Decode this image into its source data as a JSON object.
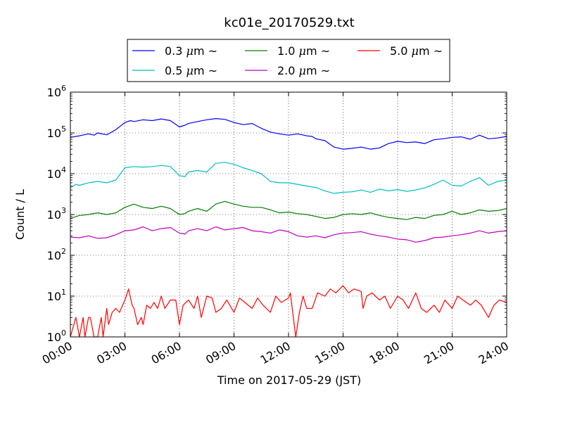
{
  "chart_data": {
    "type": "line",
    "title": "kc01e_20170529.txt",
    "xlabel": "Time on 2017-05-29 (JST)",
    "ylabel": "Count / L",
    "xlim": [
      "00:00",
      "24:00"
    ],
    "ylim": [
      1,
      1000000
    ],
    "yscale": "log",
    "grid": true,
    "legend_position": "top-center",
    "x_ticks": [
      "00:00",
      "03:00",
      "06:00",
      "09:00",
      "12:00",
      "15:00",
      "18:00",
      "21:00",
      "24:00"
    ],
    "y_ticks": [
      {
        "base": "10",
        "exp": "0"
      },
      {
        "base": "10",
        "exp": "1"
      },
      {
        "base": "10",
        "exp": "2"
      },
      {
        "base": "10",
        "exp": "3"
      },
      {
        "base": "10",
        "exp": "4"
      },
      {
        "base": "10",
        "exp": "5"
      },
      {
        "base": "10",
        "exp": "6"
      }
    ],
    "legend": [
      {
        "size": "0.3",
        "unit": "m",
        "mu": "μ",
        "suffix": "~"
      },
      {
        "size": "0.5",
        "unit": "m",
        "mu": "μ",
        "suffix": "~"
      },
      {
        "size": "1.0",
        "unit": "m",
        "mu": "μ",
        "suffix": "~"
      },
      {
        "size": "2.0",
        "unit": "m",
        "mu": "μ",
        "suffix": "~"
      },
      {
        "size": "5.0",
        "unit": "m",
        "mu": "μ",
        "suffix": "~"
      }
    ],
    "series": [
      {
        "name": "0.3 μm ~",
        "color": "#0000ff",
        "hours": [
          0,
          0.5,
          1,
          1.3,
          1.5,
          2,
          2.5,
          3,
          3.3,
          3.5,
          4,
          4.5,
          5,
          5.5,
          6,
          6.3,
          6.5,
          7,
          7.5,
          8,
          8.5,
          9,
          9.5,
          10,
          10.5,
          11,
          11.5,
          12,
          12.5,
          13,
          13.3,
          13.5,
          14,
          14.5,
          15,
          15.5,
          16,
          16.5,
          17,
          17.5,
          18,
          18.5,
          19,
          19.5,
          20,
          20.5,
          21,
          21.5,
          22,
          22.5,
          23,
          23.5,
          24
        ],
        "values": [
          78000,
          85000,
          95000,
          88000,
          100000,
          90000,
          120000,
          180000,
          200000,
          190000,
          210000,
          200000,
          220000,
          200000,
          140000,
          155000,
          170000,
          190000,
          210000,
          225000,
          215000,
          180000,
          160000,
          170000,
          130000,
          105000,
          95000,
          88000,
          95000,
          85000,
          82000,
          72000,
          65000,
          45000,
          40000,
          42000,
          45000,
          40000,
          43000,
          55000,
          62000,
          58000,
          60000,
          55000,
          68000,
          72000,
          78000,
          80000,
          70000,
          88000,
          72000,
          75000,
          82000
        ]
      },
      {
        "name": "0.5 μm ~",
        "color": "#00bfbf",
        "hours": [
          0,
          0.3,
          0.5,
          1,
          1.5,
          2,
          2.5,
          3,
          3.5,
          4,
          4.5,
          5,
          5.5,
          6,
          6.3,
          6.5,
          7,
          7.5,
          8,
          8.5,
          9,
          9.5,
          10,
          10.5,
          11,
          11.5,
          12,
          12.5,
          13,
          13.5,
          14,
          14.5,
          15,
          15.5,
          16,
          16.5,
          17,
          17.5,
          18,
          18.5,
          19,
          19.5,
          20,
          20.5,
          21,
          21.5,
          22,
          22.5,
          23,
          23.5,
          24
        ],
        "values": [
          4500,
          5500,
          5200,
          6000,
          6500,
          6000,
          7000,
          14000,
          15000,
          14500,
          15000,
          16000,
          15000,
          9000,
          8500,
          11000,
          12000,
          11000,
          18000,
          19000,
          17000,
          14000,
          12000,
          10000,
          6500,
          6000,
          6000,
          5500,
          5000,
          4600,
          3800,
          3300,
          3500,
          3600,
          4000,
          3500,
          4200,
          3800,
          4100,
          3700,
          4000,
          4500,
          5500,
          7000,
          5200,
          5000,
          6500,
          8000,
          5200,
          6500,
          7000
        ]
      },
      {
        "name": "1.0 μm ~",
        "color": "#007f00",
        "hours": [
          0,
          0.5,
          1,
          1.5,
          2,
          2.5,
          3,
          3.5,
          4,
          4.5,
          5,
          5.5,
          6,
          6.3,
          6.5,
          7,
          7.5,
          8,
          8.5,
          9,
          9.5,
          10,
          10.5,
          11,
          11.5,
          12,
          12.5,
          13,
          13.5,
          14,
          14.5,
          15,
          15.5,
          16,
          16.5,
          17,
          17.5,
          18,
          18.5,
          19,
          19.5,
          20,
          20.5,
          21,
          21.5,
          22,
          22.5,
          23,
          23.5,
          24
        ],
        "values": [
          800,
          950,
          1000,
          1100,
          1000,
          1100,
          1500,
          1800,
          1500,
          1400,
          1600,
          1400,
          1000,
          1050,
          1200,
          1400,
          1200,
          1800,
          2100,
          1800,
          1600,
          1500,
          1500,
          1300,
          1100,
          1150,
          1050,
          1000,
          900,
          800,
          850,
          1000,
          1050,
          1000,
          1100,
          950,
          850,
          800,
          750,
          850,
          800,
          950,
          1000,
          1200,
          1000,
          1100,
          1300,
          1200,
          1250,
          1400
        ]
      },
      {
        "name": "2.0 μm ~",
        "color": "#bf00bf",
        "hours": [
          0,
          0.5,
          1,
          1.5,
          2,
          2.5,
          3,
          3.5,
          4,
          4.5,
          5,
          5.5,
          6,
          6.3,
          6.5,
          7,
          7.5,
          8,
          8.5,
          9,
          9.5,
          10,
          10.5,
          11,
          11.5,
          12,
          12.5,
          13,
          13.5,
          14,
          14.5,
          15,
          15.5,
          16,
          16.5,
          17,
          17.5,
          18,
          18.5,
          19,
          19.5,
          20,
          20.5,
          21,
          21.5,
          22,
          22.5,
          23,
          23.5,
          24
        ],
        "values": [
          280,
          270,
          300,
          260,
          270,
          320,
          400,
          420,
          500,
          400,
          450,
          480,
          350,
          330,
          400,
          450,
          400,
          500,
          420,
          450,
          480,
          400,
          380,
          350,
          420,
          380,
          300,
          280,
          300,
          270,
          320,
          350,
          360,
          380,
          330,
          300,
          280,
          250,
          240,
          210,
          230,
          270,
          280,
          300,
          320,
          350,
          400,
          350,
          380,
          400
        ]
      },
      {
        "name": "5.0 μm ~",
        "color": "#ff0000",
        "hours": [
          0,
          0.3,
          0.5,
          0.7,
          0.8,
          1,
          1.1,
          1.3,
          1.5,
          1.7,
          1.8,
          2,
          2.1,
          2.3,
          2.5,
          2.7,
          2.8,
          3,
          3.2,
          3.4,
          3.5,
          3.7,
          3.9,
          4,
          4.2,
          4.4,
          4.6,
          4.8,
          5,
          5.2,
          5.5,
          5.8,
          6,
          6.2,
          6.5,
          6.8,
          7,
          7.2,
          7.5,
          7.8,
          8,
          8.3,
          8.6,
          9,
          9.3,
          9.6,
          10,
          10.3,
          10.6,
          11,
          11.3,
          11.6,
          12,
          12.1,
          12.2,
          12.4,
          12.6,
          12.8,
          13,
          13.3,
          13.6,
          14,
          14.3,
          14.6,
          15,
          15.3,
          15.6,
          16,
          16.1,
          16.3,
          16.6,
          17,
          17.3,
          17.6,
          18,
          18.3,
          18.6,
          19,
          19.3,
          19.6,
          20,
          20.3,
          20.6,
          21,
          21.3,
          21.6,
          22,
          22.3,
          22.6,
          23,
          23.3,
          23.6,
          24
        ],
        "values": [
          1,
          3,
          1,
          3,
          1,
          3,
          3,
          1,
          1,
          3,
          1,
          5,
          2,
          4,
          5,
          4,
          5,
          8,
          15,
          6,
          5,
          2,
          3,
          2,
          6,
          5,
          7,
          5,
          10,
          5,
          8,
          8,
          2,
          6,
          8,
          5,
          10,
          3,
          10,
          9,
          4,
          5,
          8,
          4,
          9,
          7,
          5,
          9,
          6,
          4,
          10,
          7,
          9,
          12,
          5,
          1,
          4,
          10,
          5,
          5,
          12,
          10,
          15,
          12,
          18,
          12,
          15,
          13,
          5,
          10,
          12,
          8,
          10,
          5,
          10,
          8,
          5,
          12,
          5,
          4,
          6,
          4,
          8,
          5,
          10,
          8,
          6,
          8,
          6,
          3,
          6,
          8,
          7
        ]
      }
    ]
  }
}
